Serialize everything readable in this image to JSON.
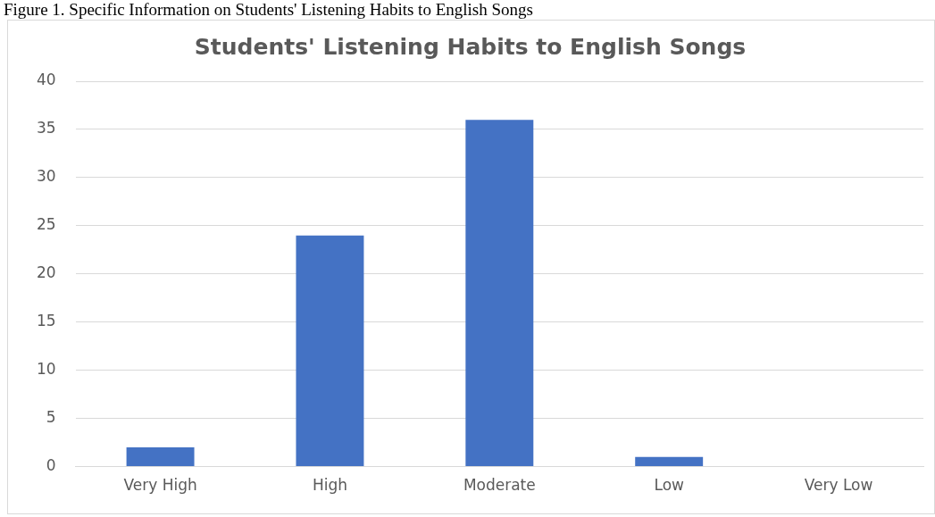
{
  "chart_data": {
    "type": "bar",
    "title": "Students' Listening Habits to English Songs",
    "categories": [
      "Very High",
      "High",
      "Moderate",
      "Low",
      "Very Low"
    ],
    "values": [
      2,
      24,
      36,
      1,
      0
    ],
    "color": "#4472c4",
    "ylim": [
      0,
      40
    ],
    "yticks": [
      0,
      5,
      10,
      15,
      20,
      25,
      30,
      35,
      40
    ],
    "grid": "y",
    "annotations": [
      "Figure 1. Specific Information on Students' Listening Habits to English Songs"
    ]
  }
}
